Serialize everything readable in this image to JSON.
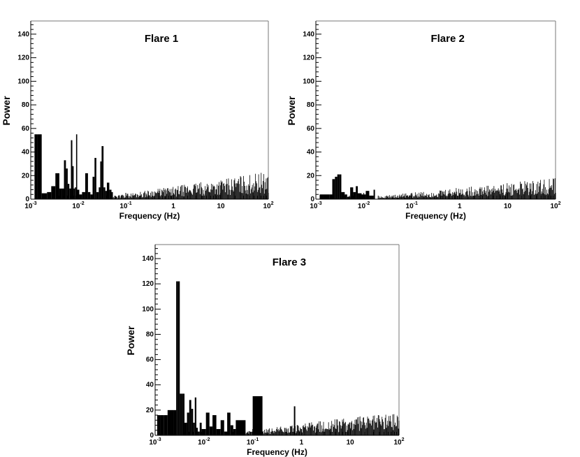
{
  "chart_data": [
    {
      "type": "bar",
      "title": "Flare 1",
      "xlabel": "Frequency (Hz)",
      "ylabel": "Power",
      "xscale": "log",
      "xlim": [
        0.001,
        100
      ],
      "ylim": [
        0,
        150
      ],
      "x_tick_labels": [
        "10^-3",
        "10^-2",
        "10^-1",
        "1",
        "10",
        "10^2"
      ],
      "y_tick_labels": [
        "0",
        "20",
        "40",
        "60",
        "80",
        "100",
        "120",
        "140"
      ],
      "series": [
        {
          "x": [
            0.0012,
            0.0014,
            0.0017,
            0.0022,
            0.0027,
            0.0033,
            0.004,
            0.0045,
            0.005,
            0.0055,
            0.006,
            0.0065,
            0.007,
            0.0075,
            0.008,
            0.0085,
            0.009,
            0.0095,
            0.0105,
            0.012,
            0.014,
            0.016,
            0.018,
            0.02,
            0.022,
            0.024,
            0.027,
            0.029,
            0.031,
            0.034,
            0.037,
            0.04,
            0.045,
            0.05
          ],
          "values": [
            55,
            55,
            5,
            6,
            11,
            22,
            9,
            9,
            33,
            26,
            13,
            9,
            50,
            28,
            9,
            10,
            55,
            8,
            4,
            6,
            22,
            6,
            4,
            19,
            35,
            6,
            10,
            32,
            45,
            10,
            7,
            14,
            8,
            6
          ]
        }
      ],
      "noise_floor": {
        "from": 0.05,
        "to": 100,
        "low_start": 2,
        "high_end": 18
      }
    },
    {
      "type": "bar",
      "title": "Flare 2",
      "xlabel": "Frequency (Hz)",
      "ylabel": "Power",
      "xscale": "log",
      "xlim": [
        0.001,
        100
      ],
      "ylim": [
        0,
        150
      ],
      "x_tick_labels": [
        "10^-3",
        "10^-2",
        "10^-1",
        "1",
        "10",
        "10^2"
      ],
      "y_tick_labels": [
        "0",
        "20",
        "40",
        "60",
        "80",
        "100",
        "120",
        "140"
      ],
      "series": [
        {
          "x": [
            0.0012,
            0.0014,
            0.0016,
            0.0019,
            0.0022,
            0.0025,
            0.0028,
            0.0031,
            0.0034,
            0.004,
            0.0045,
            0.0052,
            0.006,
            0.0068,
            0.0075,
            0.009,
            0.011,
            0.013,
            0.016
          ],
          "values": [
            4,
            4,
            4,
            4,
            17,
            19,
            21,
            21,
            6,
            4,
            2,
            10,
            6,
            11,
            5,
            4,
            7,
            3,
            8
          ]
        }
      ],
      "noise_floor": {
        "from": 0.02,
        "to": 100,
        "low_start": 2,
        "high_end": 14
      }
    },
    {
      "type": "bar",
      "title": "Flare 3",
      "xlabel": "Frequency (Hz)",
      "ylabel": "Power",
      "xscale": "log",
      "xlim": [
        0.001,
        100
      ],
      "ylim": [
        0,
        150
      ],
      "x_tick_labels": [
        "10^-3",
        "10^-2",
        "10^-1",
        "1",
        "10",
        "10^2"
      ],
      "y_tick_labels": [
        "0",
        "20",
        "40",
        "60",
        "80",
        "100",
        "120",
        "140"
      ],
      "series": [
        {
          "x": [
            0.0011,
            0.0013,
            0.0015,
            0.0018,
            0.0021,
            0.0024,
            0.0027,
            0.0029,
            0.0032,
            0.0036,
            0.004,
            0.0045,
            0.005,
            0.0055,
            0.006,
            0.0065,
            0.007,
            0.0075,
            0.0082,
            0.009,
            0.011,
            0.013,
            0.015,
            0.018,
            0.022,
            0.026,
            0.03,
            0.035,
            0.04,
            0.045,
            0.1,
            0.7
          ],
          "values": [
            16,
            16,
            16,
            20,
            20,
            20,
            122,
            122,
            33,
            33,
            10,
            18,
            28,
            21,
            10,
            30,
            6,
            3,
            10,
            5,
            18,
            7,
            16,
            5,
            12,
            3,
            18,
            8,
            5,
            12,
            31,
            23
          ]
        }
      ],
      "noise_floor": {
        "from": 0.05,
        "to": 100,
        "low_start": 2,
        "high_end": 15
      }
    }
  ],
  "colors": {
    "bars": "#000000",
    "frame": "#777777",
    "axis": "#000000"
  }
}
